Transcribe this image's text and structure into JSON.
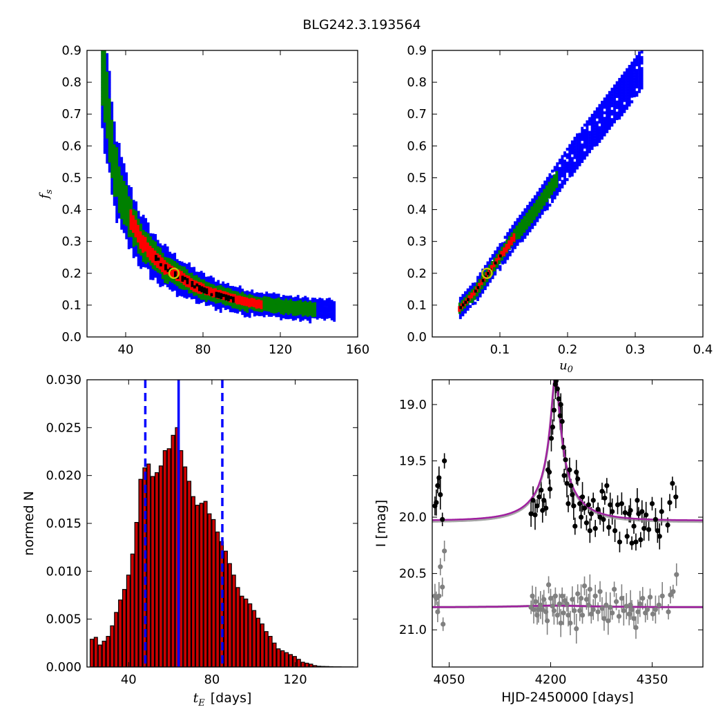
{
  "figure_title": "BLG242.3.193564",
  "chart_data": [
    {
      "id": "fs_vs_tE",
      "type": "heatmap",
      "title": "",
      "xlabel": "",
      "ylabel": "f_s",
      "ylabel_main": "f",
      "ylabel_sub": "s",
      "xlim": [
        20,
        160
      ],
      "ylim": [
        0.0,
        0.9
      ],
      "xticks": [
        40,
        80,
        120,
        160
      ],
      "yticks": [
        0.0,
        0.1,
        0.2,
        0.3,
        0.4,
        0.5,
        0.6,
        0.7,
        0.8,
        0.9
      ],
      "xtick_labels": [
        "40",
        "80",
        "120",
        "160"
      ],
      "ytick_labels": [
        "0.0",
        "0.1",
        "0.2",
        "0.3",
        "0.4",
        "0.5",
        "0.6",
        "0.7",
        "0.8",
        "0.9"
      ],
      "levels": [
        {
          "name": "3-sigma",
          "color": "#0000ff",
          "width_frac": 0.17
        },
        {
          "name": "2-sigma",
          "color": "#008000",
          "width_frac": 0.11
        },
        {
          "name": "1-sigma",
          "color": "#ff0000",
          "width_frac": 0.05
        },
        {
          "name": "best",
          "color": "#000000",
          "width_frac": 0.02
        }
      ],
      "ridge": [
        [
          27,
          0.86
        ],
        [
          30,
          0.7
        ],
        [
          33,
          0.55
        ],
        [
          37,
          0.45
        ],
        [
          42,
          0.37
        ],
        [
          47,
          0.31
        ],
        [
          53,
          0.26
        ],
        [
          60,
          0.22
        ],
        [
          65,
          0.2
        ],
        [
          72,
          0.175
        ],
        [
          80,
          0.15
        ],
        [
          90,
          0.13
        ],
        [
          100,
          0.115
        ],
        [
          110,
          0.105
        ],
        [
          125,
          0.095
        ],
        [
          140,
          0.088
        ],
        [
          148,
          0.085
        ]
      ],
      "red_range": [
        42,
        110
      ],
      "black_range": [
        55,
        95
      ],
      "best_fit": {
        "x": 65,
        "y": 0.2
      }
    },
    {
      "id": "fs_vs_u0",
      "type": "heatmap",
      "title": "",
      "xlabel": "u_0",
      "xlabel_main": "u",
      "xlabel_sub": "0",
      "ylabel": "",
      "xlim": [
        0.0,
        0.4
      ],
      "ylim": [
        0.0,
        0.9
      ],
      "xticks": [
        0.1,
        0.2,
        0.3,
        0.4
      ],
      "yticks": [
        0.0,
        0.1,
        0.2,
        0.3,
        0.4,
        0.5,
        0.6,
        0.7,
        0.8,
        0.9
      ],
      "xtick_labels": [
        "0.1",
        "0.2",
        "0.3",
        "0.4"
      ],
      "ytick_labels": [
        "0.0",
        "0.1",
        "0.2",
        "0.3",
        "0.4",
        "0.5",
        "0.6",
        "0.7",
        "0.8",
        "0.9"
      ],
      "ridge": [
        [
          0.038,
          0.09
        ],
        [
          0.06,
          0.14
        ],
        [
          0.08,
          0.2
        ],
        [
          0.1,
          0.26
        ],
        [
          0.12,
          0.32
        ],
        [
          0.15,
          0.4
        ],
        [
          0.18,
          0.49
        ],
        [
          0.21,
          0.58
        ],
        [
          0.24,
          0.66
        ],
        [
          0.27,
          0.74
        ],
        [
          0.3,
          0.82
        ],
        [
          0.31,
          0.85
        ]
      ],
      "red_range": [
        0.038,
        0.12
      ],
      "green_range": [
        0.035,
        0.185
      ],
      "best_fit": {
        "x": 0.081,
        "y": 0.2
      }
    },
    {
      "id": "tE_histogram",
      "type": "bar",
      "title": "",
      "xlabel": "t_E [days]",
      "xlabel_main": "t",
      "xlabel_sub": "E",
      "xlabel_rest": "[days]",
      "ylabel": "normed N",
      "xlim": [
        20,
        150
      ],
      "ylim": [
        0.0,
        0.03
      ],
      "xticks": [
        40,
        80,
        120
      ],
      "yticks": [
        0.0,
        0.005,
        0.01,
        0.015,
        0.02,
        0.025,
        0.03
      ],
      "xtick_labels": [
        "40",
        "80",
        "120"
      ],
      "ytick_labels": [
        "0.000",
        "0.005",
        "0.010",
        "0.015",
        "0.020",
        "0.025",
        "0.030"
      ],
      "bin_start": 21.5,
      "bin_width": 1.95,
      "values": [
        0.0029,
        0.0031,
        0.0023,
        0.0027,
        0.0032,
        0.0043,
        0.0057,
        0.007,
        0.0081,
        0.0096,
        0.0118,
        0.0151,
        0.0196,
        0.0208,
        0.0212,
        0.0199,
        0.0203,
        0.021,
        0.0226,
        0.0228,
        0.0242,
        0.025,
        0.0226,
        0.0209,
        0.0194,
        0.0178,
        0.0169,
        0.0171,
        0.0173,
        0.016,
        0.0154,
        0.0141,
        0.0131,
        0.0121,
        0.0108,
        0.0096,
        0.0083,
        0.0074,
        0.0071,
        0.0066,
        0.0059,
        0.0051,
        0.0045,
        0.0037,
        0.0032,
        0.0025,
        0.0019,
        0.0017,
        0.0015,
        0.0013,
        0.0011,
        0.0008,
        0.0005,
        0.0004,
        0.0003,
        0.00015,
        8e-05,
        6e-05,
        5e-05,
        3e-05,
        2e-05,
        2e-05,
        1e-05,
        1e-05,
        1e-05
      ],
      "bar_color": "#cc0000",
      "median": 64,
      "lower": 48,
      "upper": 85,
      "line_color": "#0000ff"
    },
    {
      "id": "light_curve",
      "type": "scatter",
      "title": "",
      "xlabel": "HJD-2450000 [days]",
      "ylabel": "I [mag]",
      "xlim": [
        4025,
        4425
      ],
      "ylim": [
        21.33,
        18.78
      ],
      "y_inverted": true,
      "xticks": [
        4050,
        4200,
        4350
      ],
      "yticks": [
        19.0,
        19.5,
        20.0,
        20.5,
        21.0
      ],
      "xtick_labels": [
        "4050",
        "4200",
        "4350"
      ],
      "ytick_labels": [
        "19.0",
        "19.5",
        "20.0",
        "20.5",
        "21.0"
      ],
      "model": {
        "t0": 4207,
        "u0": 0.081,
        "tE": 64,
        "fs": 0.2,
        "base_mag": 20.03,
        "color": "#a020a0"
      },
      "model2": {
        "base_mag": 20.8,
        "bump": 0.015,
        "color": "#a020a0"
      },
      "series": [
        {
          "color": "#000000",
          "points": [
            [
              4029,
              19.9
            ],
            [
              4031,
              19.87
            ],
            [
              4033,
              19.72
            ],
            [
              4035,
              19.65
            ],
            [
              4037,
              19.8
            ],
            [
              4040,
              20.02
            ],
            [
              4043,
              19.5
            ],
            [
              4171,
              19.97
            ],
            [
              4174,
              19.85
            ],
            [
              4177,
              19.98
            ],
            [
              4180,
              19.9
            ],
            [
              4183,
              19.82
            ],
            [
              4186,
              19.76
            ],
            [
              4188,
              19.94
            ],
            [
              4190,
              19.85
            ],
            [
              4193,
              19.92
            ],
            [
              4196,
              19.58
            ],
            [
              4198,
              19.6
            ],
            [
              4199,
              19.75
            ],
            [
              4201,
              19.3
            ],
            [
              4203,
              19.2
            ],
            [
              4205,
              19.05
            ],
            [
              4207,
              18.82
            ],
            [
              4208,
              18.79
            ],
            [
              4210,
              18.86
            ],
            [
              4212,
              18.95
            ],
            [
              4214,
              19.1
            ],
            [
              4215,
              19.0
            ],
            [
              4217,
              19.15
            ],
            [
              4219,
              19.38
            ],
            [
              4220,
              19.63
            ],
            [
              4222,
              19.49
            ],
            [
              4224,
              19.7
            ],
            [
              4226,
              19.88
            ],
            [
              4228,
              19.58
            ],
            [
              4230,
              19.72
            ],
            [
              4232,
              19.8
            ],
            [
              4234,
              19.9
            ],
            [
              4236,
              20.08
            ],
            [
              4238,
              19.6
            ],
            [
              4240,
              19.66
            ],
            [
              4243,
              19.88
            ],
            [
              4245,
              20.0
            ],
            [
              4247,
              19.82
            ],
            [
              4250,
              19.92
            ],
            [
              4253,
              20.05
            ],
            [
              4256,
              19.89
            ],
            [
              4258,
              20.12
            ],
            [
              4260,
              19.97
            ],
            [
              4263,
              19.85
            ],
            [
              4266,
              20.1
            ],
            [
              4270,
              19.93
            ],
            [
              4273,
              20.0
            ],
            [
              4276,
              19.77
            ],
            [
              4278,
              20.02
            ],
            [
              4280,
              19.83
            ],
            [
              4283,
              19.72
            ],
            [
              4286,
              20.09
            ],
            [
              4288,
              19.89
            ],
            [
              4291,
              19.95
            ],
            [
              4295,
              20.12
            ],
            [
              4299,
              19.89
            ],
            [
              4302,
              20.22
            ],
            [
              4305,
              19.88
            ],
            [
              4310,
              19.96
            ],
            [
              4313,
              20.17
            ],
            [
              4316,
              19.97
            ],
            [
              4318,
              19.94
            ],
            [
              4320,
              20.23
            ],
            [
              4323,
              20.08
            ],
            [
              4326,
              20.22
            ],
            [
              4328,
              19.85
            ],
            [
              4330,
              19.97
            ],
            [
              4333,
              20.2
            ],
            [
              4335,
              19.95
            ],
            [
              4338,
              20.1
            ],
            [
              4341,
              19.98
            ],
            [
              4345,
              20.11
            ],
            [
              4350,
              19.88
            ],
            [
              4355,
              20.02
            ],
            [
              4358,
              20.12
            ],
            [
              4361,
              20.17
            ],
            [
              4364,
              19.95
            ],
            [
              4373,
              20.07
            ],
            [
              4376,
              19.87
            ],
            [
              4380,
              19.7
            ],
            [
              4385,
              19.82
            ]
          ]
        },
        {
          "color": "#808080",
          "points": [
            [
              4029,
              20.7
            ],
            [
              4031,
              20.72
            ],
            [
              4033,
              20.84
            ],
            [
              4035,
              20.7
            ],
            [
              4037,
              20.44
            ],
            [
              4040,
              20.62
            ],
            [
              4041,
              20.95
            ],
            [
              4043,
              20.3
            ],
            [
              4171,
              20.8
            ],
            [
              4173,
              20.7
            ],
            [
              4175,
              20.82
            ],
            [
              4178,
              20.75
            ],
            [
              4180,
              20.87
            ],
            [
              4182,
              20.82
            ],
            [
              4185,
              20.78
            ],
            [
              4188,
              20.82
            ],
            [
              4190,
              20.73
            ],
            [
              4193,
              20.84
            ],
            [
              4195,
              20.92
            ],
            [
              4197,
              20.6
            ],
            [
              4200,
              20.72
            ],
            [
              4203,
              20.79
            ],
            [
              4205,
              20.83
            ],
            [
              4207,
              20.7
            ],
            [
              4210,
              20.87
            ],
            [
              4213,
              20.77
            ],
            [
              4215,
              20.94
            ],
            [
              4217,
              20.7
            ],
            [
              4219,
              20.85
            ],
            [
              4221,
              20.74
            ],
            [
              4224,
              20.77
            ],
            [
              4226,
              20.87
            ],
            [
              4229,
              20.94
            ],
            [
              4232,
              20.73
            ],
            [
              4235,
              20.83
            ],
            [
              4238,
              20.99
            ],
            [
              4240,
              20.68
            ],
            [
              4243,
              20.83
            ],
            [
              4245,
              20.72
            ],
            [
              4247,
              20.87
            ],
            [
              4250,
              20.61
            ],
            [
              4253,
              20.73
            ],
            [
              4256,
              20.78
            ],
            [
              4258,
              20.64
            ],
            [
              4260,
              20.86
            ],
            [
              4263,
              20.82
            ],
            [
              4266,
              20.7
            ],
            [
              4270,
              20.84
            ],
            [
              4273,
              20.66
            ],
            [
              4276,
              20.81
            ],
            [
              4279,
              20.9
            ],
            [
              4282,
              20.78
            ],
            [
              4285,
              20.92
            ],
            [
              4288,
              20.8
            ],
            [
              4291,
              20.85
            ],
            [
              4294,
              20.64
            ],
            [
              4297,
              20.75
            ],
            [
              4301,
              20.88
            ],
            [
              4305,
              20.72
            ],
            [
              4308,
              20.83
            ],
            [
              4312,
              20.79
            ],
            [
              4316,
              20.86
            ],
            [
              4318,
              20.78
            ],
            [
              4320,
              20.82
            ],
            [
              4323,
              20.9
            ],
            [
              4326,
              20.98
            ],
            [
              4329,
              20.84
            ],
            [
              4332,
              20.77
            ],
            [
              4336,
              20.72
            ],
            [
              4340,
              20.85
            ],
            [
              4343,
              20.82
            ],
            [
              4347,
              20.71
            ],
            [
              4351,
              20.86
            ],
            [
              4355,
              20.82
            ],
            [
              4360,
              20.78
            ],
            [
              4365,
              20.7
            ],
            [
              4374,
              20.84
            ],
            [
              4377,
              20.69
            ],
            [
              4381,
              20.66
            ],
            [
              4386,
              20.51
            ]
          ]
        }
      ]
    }
  ]
}
